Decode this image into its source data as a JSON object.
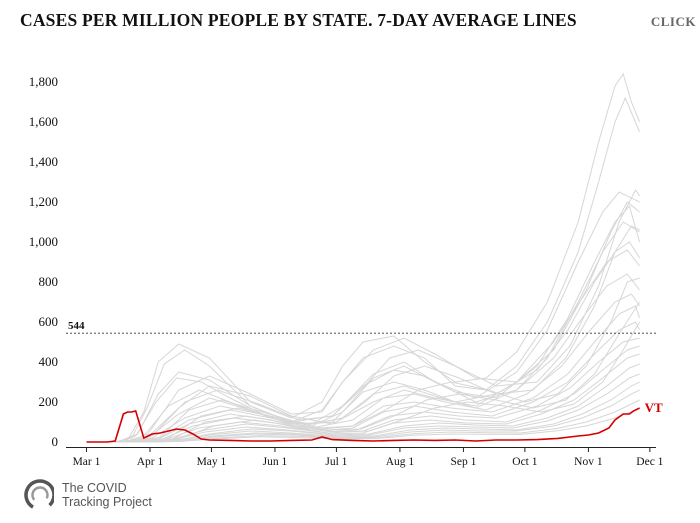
{
  "header": {
    "title": "CASES PER MILLION PEOPLE BY STATE. 7-DAY AVERAGE LINES",
    "click_label": "CLICK"
  },
  "branding": {
    "line1": "The COVID",
    "line2": "Tracking Project"
  },
  "colors": {
    "highlight": "#d40000",
    "background_lines": "#d6d6d6",
    "axis": "#222222"
  },
  "chart_data": {
    "type": "line",
    "title": "CASES PER MILLION PEOPLE BY STATE. 7-DAY AVERAGE LINES",
    "xlabel": "",
    "ylabel": "",
    "ylim": [
      0,
      1850
    ],
    "yticks": [
      {
        "value": 0,
        "label": "0"
      },
      {
        "value": 200,
        "label": "200"
      },
      {
        "value": 400,
        "label": "400"
      },
      {
        "value": 600,
        "label": "600"
      },
      {
        "value": 800,
        "label": "800"
      },
      {
        "value": 1000,
        "label": "1,000"
      },
      {
        "value": 1200,
        "label": "1,200"
      },
      {
        "value": 1400,
        "label": "1,400"
      },
      {
        "value": 1600,
        "label": "1,600"
      },
      {
        "value": 1800,
        "label": "1,800"
      }
    ],
    "xlim": [
      -10,
      278
    ],
    "xticks": [
      {
        "day": 0,
        "label": "Mar 1"
      },
      {
        "day": 31,
        "label": "Apr 1"
      },
      {
        "day": 61,
        "label": "May 1"
      },
      {
        "day": 92,
        "label": "Jun 1"
      },
      {
        "day": 122,
        "label": "Jul 1"
      },
      {
        "day": 153,
        "label": "Aug 1"
      },
      {
        "day": 184,
        "label": "Sep 1"
      },
      {
        "day": 214,
        "label": "Oct 1"
      },
      {
        "day": 245,
        "label": "Nov 1"
      },
      {
        "day": 275,
        "label": "Dec 1"
      }
    ],
    "reference_line": {
      "value": 544,
      "label": "544"
    },
    "highlight": {
      "name": "VT",
      "x": [
        0,
        10,
        14,
        18,
        20,
        22,
        24,
        28,
        32,
        36,
        40,
        44,
        48,
        52,
        56,
        60,
        70,
        80,
        90,
        100,
        110,
        115,
        120,
        130,
        140,
        150,
        160,
        170,
        180,
        190,
        200,
        210,
        220,
        230,
        240,
        245,
        250,
        255,
        258,
        262,
        265,
        267,
        270
      ],
      "y": [
        0,
        0,
        5,
        140,
        150,
        150,
        155,
        20,
        40,
        45,
        55,
        65,
        60,
        40,
        15,
        10,
        8,
        5,
        5,
        8,
        10,
        25,
        12,
        8,
        5,
        8,
        10,
        8,
        10,
        5,
        10,
        10,
        12,
        18,
        30,
        35,
        45,
        70,
        110,
        140,
        140,
        155,
        170
      ]
    },
    "series": [
      {
        "name": "state-1",
        "x": [
          0,
          12,
          20,
          28,
          35,
          45,
          60,
          80,
          100,
          115,
          125,
          135,
          150,
          165,
          180,
          195,
          210,
          225,
          240,
          250,
          258,
          262,
          266,
          270
        ],
        "y": [
          0,
          0,
          10,
          150,
          400,
          490,
          420,
          200,
          120,
          200,
          380,
          500,
          530,
          400,
          300,
          320,
          450,
          700,
          1100,
          1500,
          1780,
          1840,
          1700,
          1600
        ]
      },
      {
        "name": "state-2",
        "x": [
          0,
          14,
          22,
          30,
          38,
          48,
          60,
          80,
          100,
          115,
          125,
          135,
          150,
          165,
          180,
          195,
          210,
          225,
          240,
          250,
          258,
          263,
          270
        ],
        "y": [
          0,
          0,
          20,
          180,
          390,
          460,
          380,
          180,
          100,
          160,
          300,
          420,
          480,
          420,
          280,
          260,
          380,
          600,
          950,
          1300,
          1600,
          1720,
          1550
        ]
      },
      {
        "name": "state-3",
        "x": [
          0,
          16,
          24,
          34,
          44,
          56,
          70,
          90,
          110,
          125,
          140,
          155,
          170,
          190,
          210,
          225,
          240,
          252,
          260,
          270
        ],
        "y": [
          0,
          0,
          30,
          200,
          320,
          300,
          220,
          120,
          90,
          180,
          340,
          400,
          300,
          220,
          350,
          560,
          900,
          1150,
          1250,
          1200
        ]
      },
      {
        "name": "state-4",
        "x": [
          0,
          15,
          25,
          35,
          45,
          60,
          80,
          100,
          120,
          135,
          150,
          165,
          180,
          200,
          220,
          235,
          248,
          258,
          265,
          270
        ],
        "y": [
          0,
          0,
          40,
          240,
          350,
          310,
          180,
          100,
          130,
          280,
          360,
          330,
          250,
          220,
          380,
          620,
          900,
          1100,
          1180,
          1000
        ]
      },
      {
        "name": "state-5",
        "x": [
          0,
          18,
          28,
          40,
          55,
          70,
          90,
          110,
          125,
          140,
          155,
          170,
          190,
          210,
          225,
          240,
          252,
          262,
          270
        ],
        "y": [
          0,
          0,
          30,
          180,
          260,
          200,
          120,
          80,
          150,
          320,
          380,
          300,
          200,
          260,
          420,
          700,
          950,
          1100,
          1050
        ]
      },
      {
        "name": "state-6",
        "x": [
          0,
          20,
          30,
          45,
          60,
          80,
          100,
          120,
          135,
          150,
          165,
          180,
          200,
          220,
          235,
          248,
          258,
          265,
          270
        ],
        "y": [
          0,
          0,
          20,
          140,
          220,
          160,
          90,
          100,
          250,
          300,
          260,
          200,
          240,
          360,
          560,
          800,
          950,
          1000,
          920
        ]
      },
      {
        "name": "state-7",
        "x": [
          0,
          18,
          30,
          45,
          60,
          80,
          100,
          120,
          140,
          155,
          170,
          190,
          210,
          228,
          242,
          254,
          264,
          270
        ],
        "y": [
          0,
          0,
          25,
          170,
          280,
          230,
          130,
          90,
          200,
          260,
          220,
          180,
          300,
          500,
          720,
          900,
          960,
          880
        ]
      },
      {
        "name": "state-8",
        "x": [
          0,
          20,
          32,
          48,
          65,
          85,
          105,
          125,
          140,
          155,
          170,
          190,
          210,
          228,
          242,
          254,
          264,
          270
        ],
        "y": [
          0,
          0,
          20,
          120,
          180,
          140,
          80,
          120,
          240,
          280,
          230,
          170,
          260,
          420,
          620,
          780,
          840,
          760
        ]
      },
      {
        "name": "state-9",
        "x": [
          0,
          22,
          35,
          50,
          70,
          90,
          110,
          130,
          145,
          160,
          175,
          195,
          215,
          232,
          246,
          258,
          266,
          270
        ],
        "y": [
          0,
          0,
          15,
          110,
          160,
          120,
          70,
          110,
          220,
          240,
          200,
          160,
          240,
          380,
          560,
          700,
          740,
          680
        ]
      },
      {
        "name": "state-10",
        "x": [
          0,
          22,
          35,
          50,
          70,
          90,
          110,
          130,
          145,
          160,
          178,
          198,
          218,
          235,
          248,
          260,
          268,
          270
        ],
        "y": [
          0,
          0,
          15,
          90,
          140,
          110,
          60,
          80,
          180,
          200,
          170,
          150,
          220,
          340,
          500,
          640,
          680,
          620
        ]
      },
      {
        "name": "state-11",
        "x": [
          0,
          24,
          36,
          52,
          72,
          92,
          112,
          130,
          145,
          160,
          178,
          198,
          218,
          235,
          248,
          260,
          268,
          270
        ],
        "y": [
          0,
          0,
          10,
          80,
          120,
          95,
          55,
          70,
          150,
          180,
          150,
          130,
          200,
          300,
          440,
          560,
          600,
          560
        ]
      },
      {
        "name": "state-12",
        "x": [
          0,
          24,
          38,
          55,
          75,
          95,
          115,
          132,
          148,
          165,
          182,
          200,
          220,
          236,
          250,
          262,
          270
        ],
        "y": [
          0,
          0,
          10,
          70,
          100,
          80,
          50,
          60,
          130,
          150,
          130,
          120,
          180,
          270,
          400,
          500,
          520
        ]
      },
      {
        "name": "state-13",
        "x": [
          0,
          25,
          40,
          58,
          78,
          98,
          118,
          135,
          150,
          168,
          185,
          205,
          222,
          238,
          252,
          264,
          270
        ],
        "y": [
          0,
          0,
          8,
          60,
          90,
          70,
          45,
          55,
          110,
          130,
          110,
          100,
          160,
          240,
          360,
          460,
          480
        ]
      },
      {
        "name": "state-14",
        "x": [
          0,
          25,
          40,
          58,
          78,
          98,
          118,
          135,
          150,
          168,
          185,
          205,
          222,
          238,
          252,
          264,
          270
        ],
        "y": [
          0,
          0,
          6,
          50,
          75,
          60,
          40,
          45,
          95,
          110,
          95,
          90,
          140,
          210,
          320,
          420,
          440
        ]
      },
      {
        "name": "state-15",
        "x": [
          0,
          26,
          42,
          60,
          80,
          100,
          120,
          138,
          155,
          172,
          190,
          208,
          225,
          240,
          254,
          265,
          270
        ],
        "y": [
          0,
          0,
          5,
          40,
          65,
          55,
          35,
          40,
          80,
          95,
          85,
          80,
          120,
          180,
          280,
          370,
          390
        ]
      },
      {
        "name": "state-16",
        "x": [
          0,
          26,
          42,
          60,
          80,
          100,
          120,
          138,
          155,
          172,
          190,
          208,
          225,
          240,
          254,
          265,
          270
        ],
        "y": [
          0,
          0,
          5,
          35,
          55,
          45,
          30,
          35,
          70,
          80,
          75,
          70,
          105,
          160,
          240,
          320,
          340
        ]
      },
      {
        "name": "state-17",
        "x": [
          0,
          28,
          44,
          62,
          82,
          102,
          122,
          140,
          158,
          175,
          192,
          210,
          228,
          242,
          256,
          266,
          270
        ],
        "y": [
          0,
          0,
          4,
          30,
          45,
          40,
          25,
          30,
          60,
          70,
          65,
          60,
          90,
          140,
          210,
          280,
          300
        ]
      },
      {
        "name": "state-18",
        "x": [
          0,
          28,
          44,
          62,
          82,
          102,
          122,
          140,
          158,
          175,
          192,
          210,
          228,
          242,
          256,
          266,
          270
        ],
        "y": [
          0,
          0,
          4,
          25,
          40,
          35,
          22,
          25,
          50,
          60,
          55,
          55,
          80,
          120,
          180,
          240,
          260
        ]
      },
      {
        "name": "state-19",
        "x": [
          0,
          30,
          46,
          64,
          84,
          104,
          124,
          142,
          160,
          178,
          195,
          212,
          230,
          244,
          258,
          268,
          270
        ],
        "y": [
          0,
          0,
          3,
          20,
          32,
          28,
          18,
          22,
          42,
          50,
          46,
          45,
          68,
          100,
          150,
          200,
          210
        ]
      },
      {
        "name": "state-20",
        "x": [
          0,
          30,
          46,
          64,
          84,
          104,
          124,
          142,
          160,
          178,
          195,
          212,
          230,
          244,
          258,
          268,
          270
        ],
        "y": [
          0,
          0,
          3,
          16,
          26,
          22,
          15,
          18,
          34,
          40,
          38,
          38,
          56,
          80,
          120,
          160,
          170
        ]
      },
      {
        "name": "state-21",
        "x": [
          0,
          20,
          30,
          45,
          60,
          80,
          100,
          115,
          125,
          140,
          155,
          170,
          190,
          210,
          228,
          244,
          256,
          264,
          270
        ],
        "y": [
          0,
          0,
          40,
          260,
          330,
          240,
          140,
          150,
          300,
          460,
          520,
          440,
          320,
          300,
          460,
          760,
          1050,
          1200,
          1150
        ]
      },
      {
        "name": "state-22",
        "x": [
          0,
          22,
          32,
          48,
          64,
          84,
          104,
          120,
          134,
          148,
          162,
          180,
          200,
          220,
          236,
          250,
          260,
          268,
          270
        ],
        "y": [
          0,
          0,
          30,
          200,
          260,
          190,
          110,
          130,
          260,
          420,
          460,
          380,
          280,
          300,
          480,
          780,
          1100,
          1260,
          1230
        ]
      },
      {
        "name": "state-23",
        "x": [
          0,
          24,
          36,
          50,
          66,
          86,
          106,
          122,
          136,
          150,
          165,
          182,
          200,
          218,
          234,
          248,
          258,
          266,
          270
        ],
        "y": [
          0,
          0,
          25,
          160,
          210,
          150,
          90,
          100,
          200,
          330,
          380,
          320,
          240,
          260,
          420,
          680,
          950,
          1080,
          1060
        ]
      },
      {
        "name": "state-24",
        "x": [
          0,
          26,
          40,
          56,
          74,
          94,
          114,
          130,
          146,
          162,
          178,
          196,
          214,
          230,
          244,
          256,
          264,
          270
        ],
        "y": [
          0,
          0,
          20,
          130,
          170,
          120,
          70,
          80,
          160,
          260,
          300,
          260,
          200,
          240,
          380,
          600,
          800,
          820
        ]
      },
      {
        "name": "state-25",
        "x": [
          0,
          28,
          42,
          58,
          78,
          98,
          118,
          134,
          150,
          166,
          182,
          200,
          218,
          234,
          248,
          260,
          270
        ],
        "y": [
          0,
          0,
          15,
          100,
          130,
          95,
          60,
          65,
          130,
          210,
          240,
          210,
          170,
          210,
          340,
          540,
          700
        ]
      },
      {
        "name": "state-26",
        "x": [
          0,
          30,
          44,
          62,
          82,
          102,
          122,
          138,
          154,
          170,
          186,
          204,
          222,
          238,
          252,
          262,
          270
        ],
        "y": [
          0,
          0,
          12,
          80,
          110,
          80,
          50,
          55,
          110,
          170,
          200,
          180,
          150,
          190,
          300,
          460,
          600
        ]
      }
    ]
  }
}
